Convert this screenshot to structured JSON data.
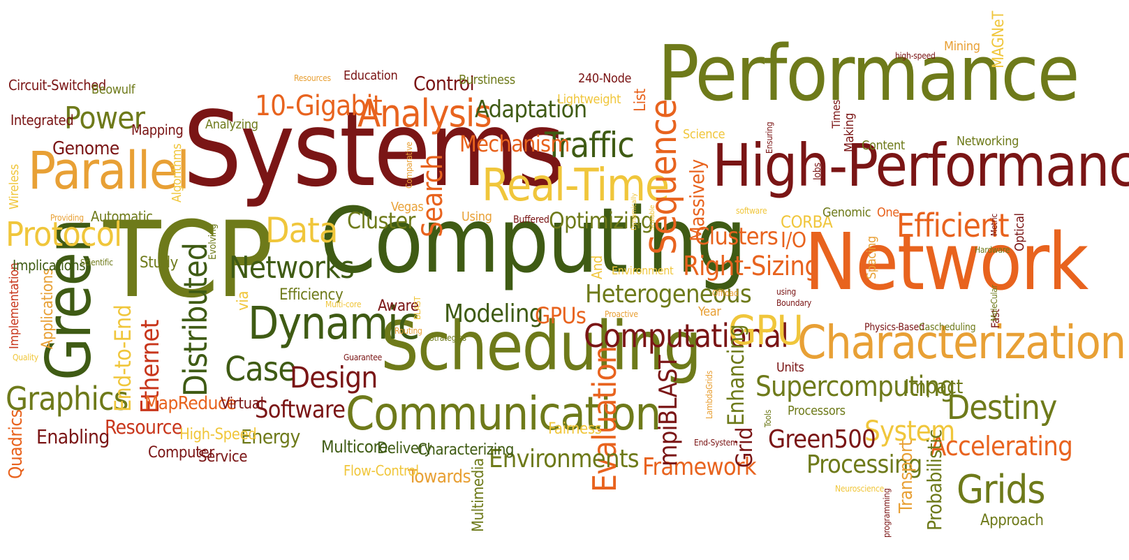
{
  "colors": {
    "maroon": "#7a1515",
    "red": "#c8361b",
    "orange": "#e8631e",
    "amber": "#e8a035",
    "yellow": "#f0c63b",
    "olive": "#6e7a1a",
    "darkgreen": "#3f5b14"
  },
  "words": [
    {
      "text": "Performance",
      "color": "olive"
    },
    {
      "text": "High-Performance",
      "color": "maroon"
    },
    {
      "text": "Network",
      "color": "orange"
    },
    {
      "text": "Computing",
      "color": "darkgreen"
    },
    {
      "text": "Systems",
      "color": "maroon"
    },
    {
      "text": "TCP",
      "color": "olive"
    },
    {
      "text": "Scheduling",
      "color": "olive"
    },
    {
      "text": "Characterization",
      "color": "amber"
    },
    {
      "text": "Communication",
      "color": "olive"
    },
    {
      "text": "Parallel",
      "color": "amber"
    },
    {
      "text": "Green",
      "color": "darkgreen"
    },
    {
      "text": "Real-Time",
      "color": "yellow"
    },
    {
      "text": "Dynamic",
      "color": "darkgreen"
    },
    {
      "text": "Analysis",
      "color": "orange"
    },
    {
      "text": "Computational",
      "color": "maroon"
    },
    {
      "text": "Supercomputing",
      "color": "olive"
    },
    {
      "text": "Sequence",
      "color": "orange"
    },
    {
      "text": "GPU",
      "color": "yellow"
    },
    {
      "text": "Efficient",
      "color": "orange"
    },
    {
      "text": "Grids",
      "color": "olive"
    },
    {
      "text": "Destiny",
      "color": "olive"
    },
    {
      "text": "Distributed",
      "color": "darkgreen"
    },
    {
      "text": "Evaluation",
      "color": "orange"
    },
    {
      "text": "Traffic",
      "color": "darkgreen"
    },
    {
      "text": "Graphics",
      "color": "olive"
    },
    {
      "text": "Protocol",
      "color": "yellow"
    },
    {
      "text": "Networks",
      "color": "darkgreen"
    },
    {
      "text": "Case",
      "color": "darkgreen"
    },
    {
      "text": "Design",
      "color": "maroon"
    },
    {
      "text": "Data",
      "color": "yellow"
    },
    {
      "text": "Power",
      "color": "olive"
    },
    {
      "text": "Heterogeneous",
      "color": "olive"
    },
    {
      "text": "Right-Sizing",
      "color": "orange"
    },
    {
      "text": "Modeling",
      "color": "darkgreen"
    },
    {
      "text": "Software",
      "color": "maroon"
    },
    {
      "text": "Ethernet",
      "color": "red"
    },
    {
      "text": "Accelerating",
      "color": "orange"
    },
    {
      "text": "System",
      "color": "yellow"
    },
    {
      "text": "Processing",
      "color": "olive"
    },
    {
      "text": "Green500",
      "color": "maroon"
    },
    {
      "text": "Environments",
      "color": "olive"
    },
    {
      "text": "Framework",
      "color": "orange"
    },
    {
      "text": "Cluster",
      "color": "olive"
    },
    {
      "text": "Search",
      "color": "orange"
    },
    {
      "text": "Clusters",
      "color": "orange"
    },
    {
      "text": "mpiBLAST",
      "color": "maroon"
    },
    {
      "text": "10-Gigabit",
      "color": "orange"
    },
    {
      "text": "Optimizing",
      "color": "olive"
    },
    {
      "text": "Mechanism",
      "color": "orange"
    },
    {
      "text": "Adaptation",
      "color": "darkgreen"
    },
    {
      "text": "End-to-End",
      "color": "yellow"
    },
    {
      "text": "Enhancing",
      "color": "olive"
    },
    {
      "text": "Genome",
      "color": "maroon"
    },
    {
      "text": "Enabling",
      "color": "maroon"
    },
    {
      "text": "Resource",
      "color": "red"
    },
    {
      "text": "MapReduce",
      "color": "orange"
    },
    {
      "text": "Energy",
      "color": "olive"
    },
    {
      "text": "GPUs",
      "color": "orange"
    },
    {
      "text": "Control",
      "color": "maroon"
    },
    {
      "text": "Massively",
      "color": "orange"
    },
    {
      "text": "Grid",
      "color": "maroon"
    },
    {
      "text": "Multicore",
      "color": "darkgreen"
    },
    {
      "text": "Delivery",
      "color": "darkgreen"
    },
    {
      "text": "Characterizing",
      "color": "darkgreen"
    },
    {
      "text": "Towards",
      "color": "amber"
    },
    {
      "text": "Impact",
      "color": "olive"
    },
    {
      "text": "Probabilistic",
      "color": "olive"
    },
    {
      "text": "Transport",
      "color": "amber"
    },
    {
      "text": "Approach",
      "color": "olive"
    },
    {
      "text": "Aware",
      "color": "maroon"
    },
    {
      "text": "Efficiency",
      "color": "olive"
    },
    {
      "text": "Multimedia",
      "color": "olive"
    },
    {
      "text": "Computer",
      "color": "maroon"
    },
    {
      "text": "Service",
      "color": "maroon"
    },
    {
      "text": "Virtual",
      "color": "maroon"
    },
    {
      "text": "High-Speed",
      "color": "yellow"
    },
    {
      "text": "Fairness",
      "color": "yellow"
    },
    {
      "text": "Flow-Control",
      "color": "yellow"
    },
    {
      "text": "Quadrics",
      "color": "orange"
    },
    {
      "text": "Applications",
      "color": "amber"
    },
    {
      "text": "Implementation",
      "color": "red"
    },
    {
      "text": "Implications",
      "color": "darkgreen"
    },
    {
      "text": "Study",
      "color": "olive"
    },
    {
      "text": "Automatic",
      "color": "olive"
    },
    {
      "text": "Algorithms",
      "color": "yellow"
    },
    {
      "text": "Wireless",
      "color": "yellow"
    },
    {
      "text": "Integrated",
      "color": "maroon"
    },
    {
      "text": "Mapping",
      "color": "maroon"
    },
    {
      "text": "Circuit-Switched",
      "color": "maroon"
    },
    {
      "text": "Beowulf",
      "color": "olive"
    },
    {
      "text": "Analyzing",
      "color": "olive"
    },
    {
      "text": "Education",
      "color": "maroon"
    },
    {
      "text": "Burstiness",
      "color": "olive"
    },
    {
      "text": "240-Node",
      "color": "maroon"
    },
    {
      "text": "Lightweight",
      "color": "yellow"
    },
    {
      "text": "List",
      "color": "orange"
    },
    {
      "text": "Science",
      "color": "yellow"
    },
    {
      "text": "Content",
      "color": "olive"
    },
    {
      "text": "Networking",
      "color": "olive"
    },
    {
      "text": "Making",
      "color": "maroon"
    },
    {
      "text": "Mining",
      "color": "amber"
    },
    {
      "text": "MAGNeT",
      "color": "yellow"
    },
    {
      "text": "Times",
      "color": "maroon"
    },
    {
      "text": "high-speed",
      "color": "maroon"
    },
    {
      "text": "CORBA",
      "color": "yellow"
    },
    {
      "text": "Genomic",
      "color": "olive"
    },
    {
      "text": "One",
      "color": "orange"
    },
    {
      "text": "I/O",
      "color": "orange"
    },
    {
      "text": "Using",
      "color": "amber"
    },
    {
      "text": "Buffered",
      "color": "maroon"
    },
    {
      "text": "Vegas",
      "color": "amber"
    },
    {
      "text": "via",
      "color": "yellow"
    },
    {
      "text": "And",
      "color": "yellow"
    },
    {
      "text": "Environment",
      "color": "yellow"
    },
    {
      "text": "Year",
      "color": "amber"
    },
    {
      "text": "Units",
      "color": "maroon"
    },
    {
      "text": "Processors",
      "color": "olive"
    },
    {
      "text": "Spacing",
      "color": "amber"
    },
    {
      "text": "Optical",
      "color": "maroon"
    },
    {
      "text": "Hardware",
      "color": "olive"
    },
    {
      "text": "Physics-Based",
      "color": "maroon"
    },
    {
      "text": "Cascheduling",
      "color": "olive"
    },
    {
      "text": "Fast",
      "color": "maroon"
    },
    {
      "text": "Neuroscience",
      "color": "yellow"
    },
    {
      "text": "programming",
      "color": "maroon"
    },
    {
      "text": "Evolving",
      "color": "olive"
    },
    {
      "text": "Scientific",
      "color": "olive"
    },
    {
      "text": "Providing",
      "color": "amber"
    },
    {
      "text": "Quality",
      "color": "yellow"
    },
    {
      "text": "Multi-core",
      "color": "yellow"
    },
    {
      "text": "Routing",
      "color": "amber"
    },
    {
      "text": "Strategies",
      "color": "olive"
    },
    {
      "text": "Guarantee",
      "color": "maroon"
    },
    {
      "text": "BLAST",
      "color": "yellow"
    },
    {
      "text": "Comparative",
      "color": "amber"
    },
    {
      "text": "Resources",
      "color": "amber"
    },
    {
      "text": "Proactive",
      "color": "amber"
    },
    {
      "text": "Offload",
      "color": "amber"
    },
    {
      "text": "using",
      "color": "maroon"
    },
    {
      "text": "Boundary",
      "color": "maroon"
    },
    {
      "text": "Jobs",
      "color": "maroon"
    },
    {
      "text": "Ensuring",
      "color": "maroon"
    },
    {
      "text": "software",
      "color": "yellow"
    },
    {
      "text": "Metric",
      "color": "maroon"
    },
    {
      "text": "MoleCular",
      "color": "olive"
    },
    {
      "text": "End-System",
      "color": "maroon"
    },
    {
      "text": "LambdaGrids",
      "color": "amber"
    },
    {
      "text": "Tools",
      "color": "olive"
    },
    {
      "text": "Dynamically",
      "color": "yellow"
    },
    {
      "text": "Scalable",
      "color": "yellow"
    }
  ]
}
